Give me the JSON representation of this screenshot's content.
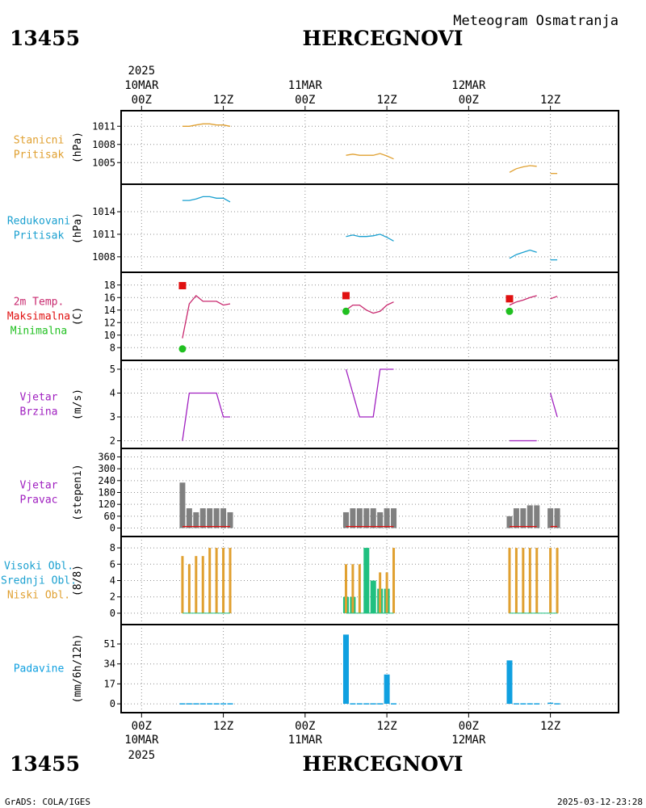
{
  "station_id": "13455",
  "station_name": "HERCEGNOVI",
  "subtitle": "Meteogram Osmatranja",
  "footer_left": "GrADS: COLA/IGES",
  "footer_right": "2025-03-12-23:28",
  "colors": {
    "pressure": "#e0a030",
    "reduced": "#1aa0d0",
    "temp": "#c8286e",
    "tmax": "#e01010",
    "tmin": "#20c020",
    "wind": "#a020c0",
    "winddir_bar": "#808080",
    "winddir_line": "#e01010",
    "cloud_low": "#e0a030",
    "cloud_mid": "#20c080",
    "precip": "#10a0e0"
  },
  "time_axis": {
    "top_year": "2025",
    "bottom_year": "2025",
    "ticks": [
      {
        "hour": 0,
        "label": "00Z",
        "date": "10MAR"
      },
      {
        "hour": 12,
        "label": "12Z",
        "date": ""
      },
      {
        "hour": 24,
        "label": "00Z",
        "date": "11MAR"
      },
      {
        "hour": 36,
        "label": "12Z",
        "date": ""
      },
      {
        "hour": 48,
        "label": "00Z",
        "date": "12MAR"
      },
      {
        "hour": 60,
        "label": "12Z",
        "date": ""
      }
    ],
    "xlim": [
      -3,
      70
    ]
  },
  "chart_data": [
    {
      "type": "line",
      "panel": "stanicni",
      "label_lines": [
        "Stanicni",
        "Pritisak"
      ],
      "ylabel": "(hPa)",
      "ylim": [
        1002.5,
        1012.5
      ],
      "yticks": [
        1005,
        1008,
        1011
      ],
      "series": [
        {
          "x": [
            6,
            7,
            8,
            9,
            10,
            11,
            12,
            13
          ],
          "values": [
            1011.0,
            1011.0,
            1011.2,
            1011.4,
            1011.4,
            1011.2,
            1011.2,
            1011.0
          ]
        },
        {
          "x": [
            30,
            31,
            32,
            33,
            34,
            35,
            36,
            37
          ],
          "values": [
            1006.2,
            1006.4,
            1006.2,
            1006.2,
            1006.2,
            1006.5,
            1006.1,
            1005.6
          ]
        },
        {
          "x": [
            54,
            55,
            56,
            57,
            58
          ],
          "values": [
            1003.4,
            1004.0,
            1004.3,
            1004.5,
            1004.4
          ]
        },
        {
          "x": [
            60,
            61
          ],
          "values": [
            1003.2,
            1003.2
          ]
        }
      ]
    },
    {
      "type": "line",
      "panel": "redukovani",
      "label_lines": [
        "Redukovani",
        "Pritisak"
      ],
      "ylabel": "(hPa)",
      "ylim": [
        1006.8,
        1016.8
      ],
      "yticks": [
        1008,
        1011,
        1014
      ],
      "series": [
        {
          "x": [
            6,
            7,
            8,
            9,
            10,
            11,
            12,
            13
          ],
          "values": [
            1015.5,
            1015.5,
            1015.7,
            1016.0,
            1016.0,
            1015.8,
            1015.8,
            1015.3
          ]
        },
        {
          "x": [
            30,
            31,
            32,
            33,
            34,
            35,
            36,
            37
          ],
          "values": [
            1010.7,
            1010.9,
            1010.7,
            1010.7,
            1010.8,
            1011.0,
            1010.6,
            1010.1
          ]
        },
        {
          "x": [
            54,
            55,
            56,
            57,
            58
          ],
          "values": [
            1007.8,
            1008.3,
            1008.6,
            1008.9,
            1008.6
          ]
        },
        {
          "x": [
            60,
            61
          ],
          "values": [
            1007.6,
            1007.6
          ]
        }
      ]
    },
    {
      "type": "line",
      "panel": "temperatura",
      "label_lines": [
        "2m Temp.",
        "Maksimalna",
        "Minimalna"
      ],
      "ylabel": "(C)",
      "ylim": [
        7,
        19
      ],
      "yticks": [
        8,
        10,
        12,
        14,
        16,
        18
      ],
      "series": [
        {
          "x": [
            6,
            7,
            8,
            9,
            10,
            11,
            12,
            13
          ],
          "values": [
            9.5,
            15.0,
            16.3,
            15.4,
            15.4,
            15.4,
            14.8,
            15.0
          ]
        },
        {
          "x": [
            30,
            31,
            32,
            33,
            34,
            35,
            36,
            37
          ],
          "values": [
            14.0,
            14.8,
            14.8,
            14.0,
            13.5,
            13.8,
            14.8,
            15.3
          ]
        },
        {
          "x": [
            54,
            55,
            56,
            57,
            58
          ],
          "values": [
            14.8,
            15.3,
            15.6,
            16.0,
            16.3
          ]
        },
        {
          "x": [
            60,
            61
          ],
          "values": [
            15.8,
            16.2
          ]
        }
      ],
      "tmax": [
        {
          "x": 6,
          "value": 17.9
        },
        {
          "x": 30,
          "value": 16.3
        },
        {
          "x": 54,
          "value": 15.8
        }
      ],
      "tmin": [
        {
          "x": 6,
          "value": 7.8
        },
        {
          "x": 30,
          "value": 13.8
        },
        {
          "x": 54,
          "value": 13.8
        }
      ]
    },
    {
      "type": "line",
      "panel": "vjetar-brzina",
      "label_lines": [
        "Vjetar",
        "Brzina"
      ],
      "ylabel": "(m/s)",
      "ylim": [
        1.95,
        5.1
      ],
      "yticks": [
        2,
        3,
        4,
        5
      ],
      "series": [
        {
          "x": [
            6,
            7,
            8,
            9,
            10,
            11,
            12,
            13
          ],
          "values": [
            2,
            4,
            4,
            4,
            4,
            4,
            3,
            3
          ]
        },
        {
          "x": [
            30,
            31,
            32,
            33,
            34,
            35,
            36,
            37
          ],
          "values": [
            5,
            4,
            3,
            3,
            3,
            5,
            5,
            5
          ]
        },
        {
          "x": [
            54,
            55,
            56,
            57,
            58
          ],
          "values": [
            2,
            2,
            2,
            2,
            2
          ]
        },
        {
          "x": [
            60,
            61
          ],
          "values": [
            4,
            3
          ]
        }
      ]
    },
    {
      "type": "bar",
      "panel": "vjetar-pravac",
      "label_lines": [
        "Vjetar",
        "Pravac"
      ],
      "ylabel": "(stepeni)",
      "ylim": [
        -10,
        370
      ],
      "yticks": [
        0,
        60,
        120,
        180,
        240,
        300,
        360
      ],
      "x": [
        6,
        7,
        8,
        9,
        10,
        11,
        12,
        13,
        30,
        31,
        32,
        33,
        34,
        35,
        36,
        37,
        54,
        55,
        56,
        57,
        58,
        60,
        61
      ],
      "values": [
        230,
        100,
        80,
        100,
        100,
        100,
        100,
        80,
        80,
        100,
        100,
        100,
        100,
        80,
        100,
        100,
        60,
        100,
        100,
        115,
        115,
        100,
        100
      ],
      "baseline_value": 8
    },
    {
      "type": "bar",
      "panel": "oblacnost",
      "label_lines": [
        "Visoki Obl.",
        "Srednji Obl.",
        "Niski Obl."
      ],
      "ylabel": "(8/8)",
      "ylim": [
        -0.6,
        8.6
      ],
      "yticks": [
        0,
        2,
        4,
        6,
        8
      ],
      "x": [
        6,
        7,
        8,
        9,
        10,
        11,
        12,
        13,
        30,
        31,
        32,
        33,
        34,
        35,
        36,
        37,
        54,
        55,
        56,
        57,
        58,
        60,
        61
      ],
      "series": [
        {
          "name": "Niski Obl.",
          "values": [
            7,
            6,
            7,
            7,
            8,
            8,
            8,
            8,
            6,
            6,
            6,
            0,
            0,
            5,
            5,
            8,
            8,
            8,
            8,
            8,
            8,
            8,
            8
          ]
        },
        {
          "name": "Srednji Obl.",
          "values": [
            0,
            0,
            0,
            0,
            0,
            0,
            0,
            0,
            2,
            2,
            0,
            8,
            4,
            3,
            3,
            0,
            0,
            0,
            0,
            0,
            0,
            0,
            0
          ]
        },
        {
          "name": "Visoki Obl.",
          "values": [
            0,
            0,
            0,
            0,
            0,
            0,
            0,
            0,
            0,
            0,
            0,
            0,
            0,
            0,
            0,
            0,
            0,
            0,
            0,
            0,
            0,
            0,
            0
          ]
        }
      ]
    },
    {
      "type": "bar",
      "panel": "padavine",
      "label_lines": [
        "Padavine"
      ],
      "ylabel": "(mm/6h/12h)",
      "ylim": [
        -2,
        62
      ],
      "yticks": [
        0,
        17,
        34,
        51
      ],
      "x": [
        6,
        7,
        8,
        9,
        10,
        11,
        12,
        13,
        30,
        31,
        32,
        33,
        34,
        35,
        36,
        37,
        54,
        55,
        56,
        57,
        58,
        60,
        61
      ],
      "values": [
        0.5,
        0.5,
        0.5,
        0.5,
        0.5,
        0.5,
        0.5,
        0.5,
        59,
        0.5,
        0.5,
        0.5,
        0.5,
        0.5,
        25,
        0.5,
        37,
        0.5,
        0.5,
        0.5,
        0.5,
        1,
        0.5
      ]
    }
  ]
}
